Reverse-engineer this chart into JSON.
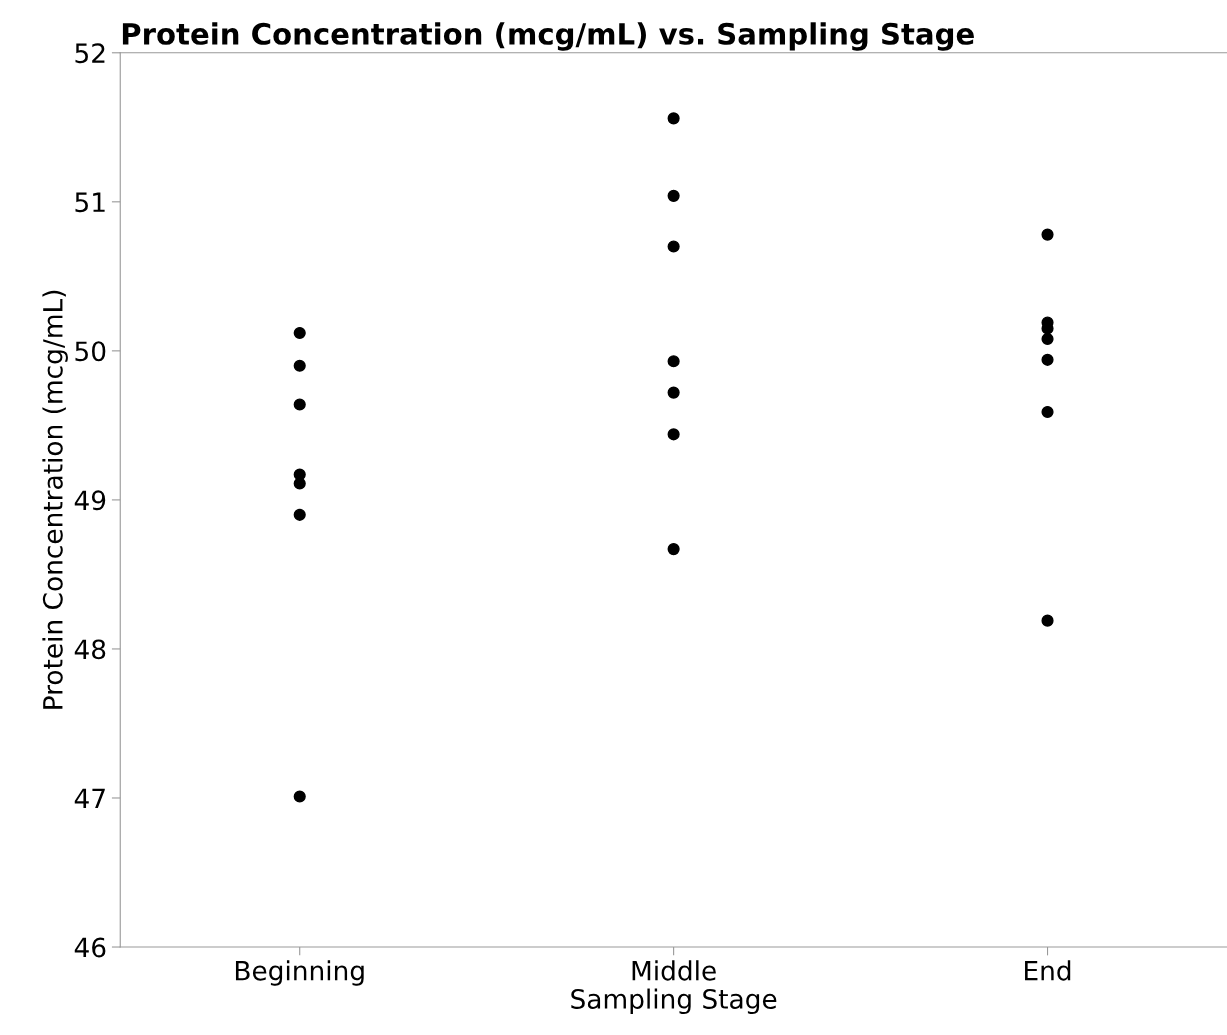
{
  "chart_data": {
    "type": "scatter",
    "title": "Protein Concentration (mcg/mL) vs. Sampling Stage",
    "xlabel": "Sampling Stage",
    "ylabel": "Protein Concentration (mcg/mL)",
    "categories": [
      "Beginning",
      "Middle",
      "End"
    ],
    "series": [
      {
        "color": "#000000",
        "x": [
          "Beginning",
          "Beginning",
          "Beginning",
          "Beginning",
          "Beginning",
          "Beginning",
          "Beginning",
          "Middle",
          "Middle",
          "Middle",
          "Middle",
          "Middle",
          "Middle",
          "Middle",
          "End",
          "End",
          "End",
          "End",
          "End",
          "End",
          "End"
        ],
        "values": [
          50.12,
          49.9,
          49.64,
          49.17,
          49.11,
          48.9,
          47.01,
          51.56,
          51.04,
          50.7,
          49.93,
          49.72,
          49.44,
          48.67,
          50.78,
          50.19,
          50.08,
          50.15,
          49.94,
          49.59,
          48.19
        ]
      }
    ],
    "ylim": [
      46,
      52
    ],
    "yticks": [
      46,
      47,
      48,
      49,
      50,
      51,
      52
    ],
    "grid": false,
    "marker": "circle"
  }
}
